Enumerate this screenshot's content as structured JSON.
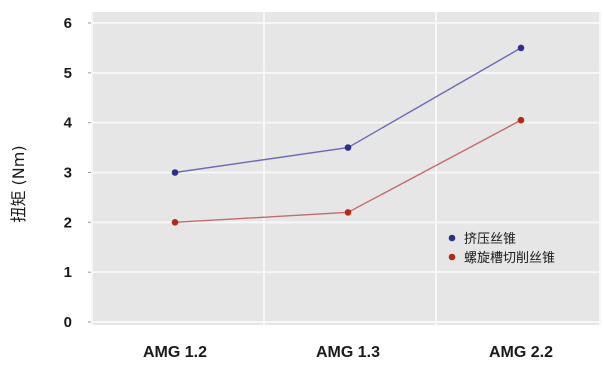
{
  "chart_data": {
    "type": "line",
    "categories": [
      "AMG 1.2",
      "AMG 1.3",
      "AMG 2.2"
    ],
    "series": [
      {
        "name": "挤压丝锥",
        "values": [
          3.0,
          3.5,
          5.5
        ],
        "color": "#6a6ab8",
        "marker_color": "#2e2e8c"
      },
      {
        "name": "螺旋槽切削丝锥",
        "values": [
          2.0,
          2.2,
          4.05
        ],
        "color": "#c86a6a",
        "marker_color": "#b42a14"
      }
    ],
    "ylabel": "扭矩 (Nm)",
    "xlabel": "",
    "ylim": [
      0,
      6
    ],
    "yticks": [
      "0",
      "1",
      "2",
      "3",
      "4",
      "5",
      "6"
    ],
    "grid": true,
    "legend_position": "right"
  }
}
